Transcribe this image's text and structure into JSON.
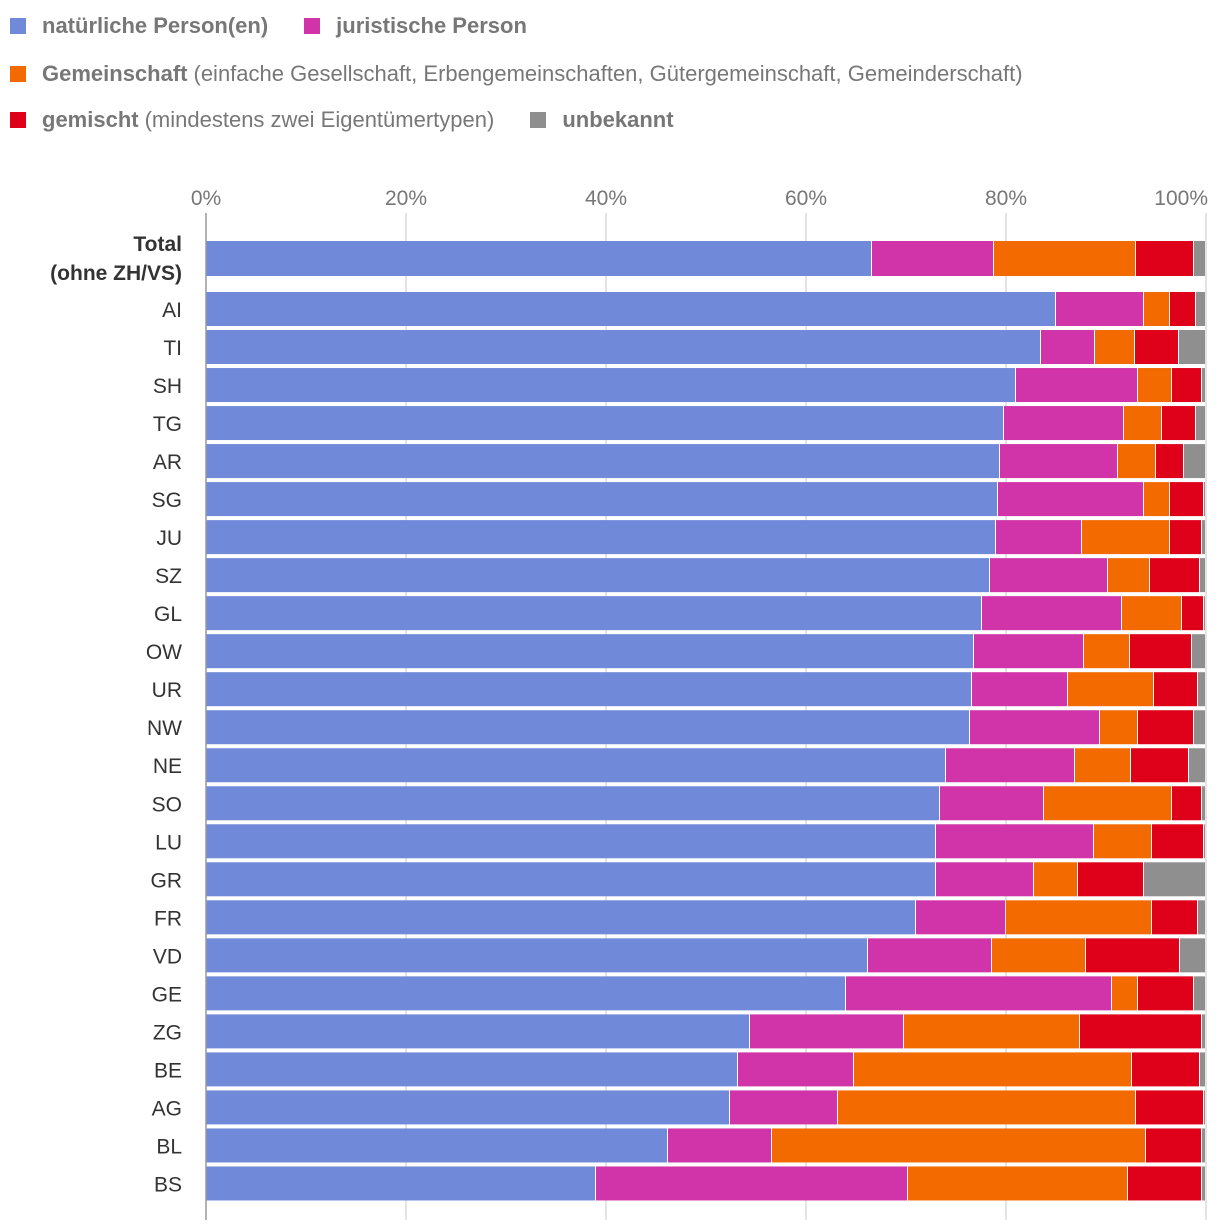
{
  "legend": [
    {
      "name": "natürliche Person(en)",
      "desc": "",
      "color": "#7089d9"
    },
    {
      "name": "juristische Person",
      "desc": "",
      "color": "#d034a8"
    },
    {
      "name": "Gemeinschaft",
      "desc": "(einfache Gesellschaft, Erbengemeinschaften, Gütergemeinschaft, Gemeinderschaft)",
      "color": "#f26a00"
    },
    {
      "name": "gemischt",
      "desc": "(mindestens zwei Eigentümertypen)",
      "color": "#df0019"
    },
    {
      "name": "unbekannt",
      "desc": "",
      "color": "#8f8f8f"
    }
  ],
  "chart_data": {
    "type": "bar",
    "orientation": "horizontal",
    "stacked": true,
    "title": "",
    "xlabel": "",
    "ylabel": "",
    "xlim": [
      0,
      100
    ],
    "x_ticks": [
      "0%",
      "20%",
      "40%",
      "60%",
      "80%",
      "100%"
    ],
    "grid": true,
    "legend_position": "top",
    "categories": [
      [
        "Total",
        "(ohne ZH/VS)"
      ],
      "AI",
      "TI",
      "SH",
      "TG",
      "AR",
      "SG",
      "JU",
      "SZ",
      "GL",
      "OW",
      "UR",
      "NW",
      "NE",
      "SO",
      "LU",
      "GR",
      "FR",
      "VD",
      "GE",
      "ZG",
      "BE",
      "AG",
      "BL",
      "BS"
    ],
    "series": [
      {
        "name": "natürliche Person(en)",
        "color": "#7089d9",
        "values": [
          66.6,
          85.0,
          83.5,
          81.0,
          79.8,
          79.4,
          79.2,
          79.0,
          78.4,
          77.6,
          76.8,
          76.6,
          76.4,
          74.0,
          73.4,
          73.0,
          73.0,
          71.0,
          66.2,
          64.0,
          54.4,
          53.2,
          52.4,
          46.2,
          39.0
        ]
      },
      {
        "name": "juristische Person",
        "color": "#d034a8",
        "values": [
          12.2,
          8.8,
          5.4,
          12.2,
          12.0,
          11.8,
          14.6,
          8.6,
          11.8,
          14.0,
          11.0,
          9.6,
          13.0,
          12.9,
          10.4,
          15.8,
          9.8,
          9.0,
          12.4,
          26.6,
          15.4,
          11.6,
          10.8,
          10.4,
          31.2
        ]
      },
      {
        "name": "Gemeinschaft",
        "color": "#f26a00",
        "values": [
          14.2,
          2.6,
          4.0,
          3.4,
          3.8,
          3.8,
          2.6,
          8.8,
          4.2,
          6.0,
          4.6,
          8.6,
          3.8,
          5.6,
          12.8,
          5.8,
          4.4,
          14.6,
          9.4,
          2.6,
          17.6,
          27.8,
          29.8,
          37.4,
          22.0
        ]
      },
      {
        "name": "gemischt",
        "color": "#df0019",
        "values": [
          5.8,
          2.6,
          4.4,
          3.0,
          3.4,
          2.8,
          3.4,
          3.2,
          5.0,
          2.2,
          6.2,
          4.4,
          5.6,
          5.8,
          3.0,
          5.2,
          6.6,
          4.6,
          9.4,
          5.6,
          12.2,
          6.8,
          6.8,
          5.6,
          7.4
        ]
      },
      {
        "name": "unbekannt",
        "color": "#8f8f8f",
        "values": [
          1.2,
          1.0,
          2.7,
          0.4,
          1.0,
          2.2,
          0.2,
          0.4,
          0.6,
          0.2,
          1.4,
          0.8,
          1.2,
          1.7,
          0.4,
          0.2,
          6.2,
          0.8,
          2.6,
          1.2,
          0.4,
          0.6,
          0.2,
          0.4,
          0.4
        ]
      }
    ]
  }
}
